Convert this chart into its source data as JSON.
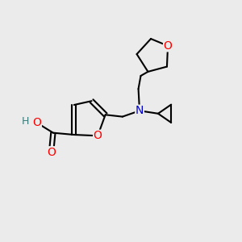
{
  "bg_color": "#ebebeb",
  "bond_color": "#000000",
  "bond_width": 1.5,
  "atom_colors": {
    "O": "#ff0000",
    "N": "#0000cc",
    "H": "#3a7a7a",
    "C": "#000000"
  },
  "font_size_atom": 9,
  "fig_bg": "#ebebeb",
  "xlim": [
    0,
    10
  ],
  "ylim": [
    0,
    10
  ]
}
